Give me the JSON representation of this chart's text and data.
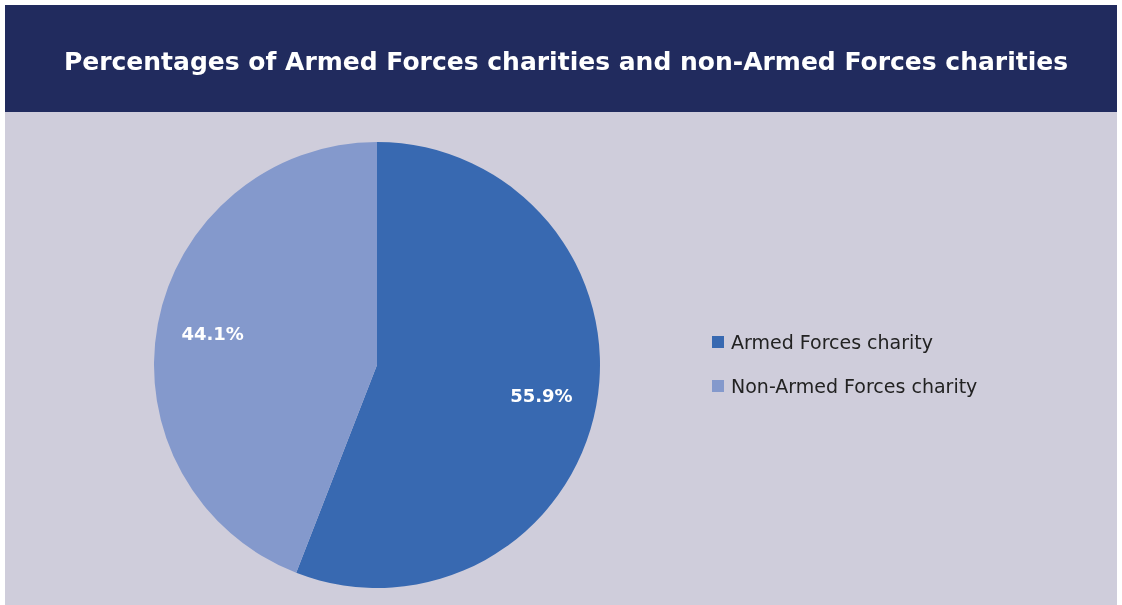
{
  "chart_data": {
    "type": "pie",
    "title": "Percentages of Armed Forces charities and non-Armed Forces charities",
    "categories": [
      "Armed Forces charity",
      "Non-Armed Forces charity"
    ],
    "values": [
      55.9,
      44.1
    ],
    "colors": [
      "#3869b1",
      "#8499cc"
    ],
    "value_labels": [
      "55.9%",
      "44.1%"
    ],
    "legend": "right"
  }
}
